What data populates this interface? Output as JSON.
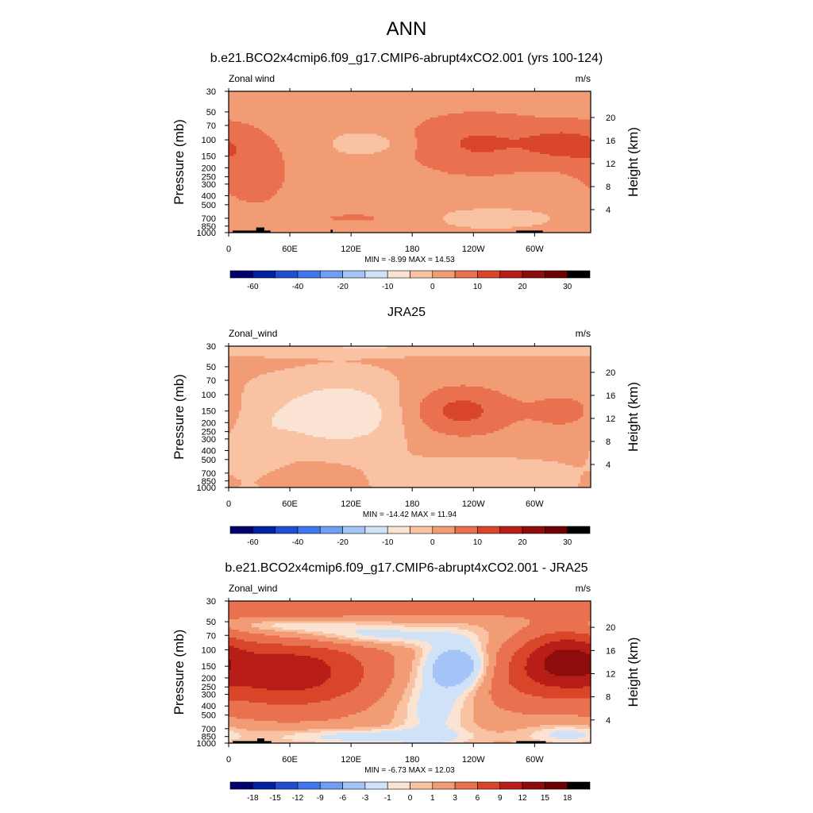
{
  "page_title": "ANN",
  "colors": {
    "full_scale": [
      "#00006e",
      "#0022a0",
      "#1f4fd0",
      "#3f77ee",
      "#6f9ff5",
      "#a4c3f7",
      "#d0e2f8",
      "#fbe3d3",
      "#f8c2a3",
      "#f29c76",
      "#e9714f",
      "#d84528",
      "#b81e17",
      "#8f0c0c",
      "#6e0000"
    ],
    "diff_scale": [
      "#00006e",
      "#0022a0",
      "#1f4fd0",
      "#3f77ee",
      "#6f9ff5",
      "#a4c3f7",
      "#d0e2f8",
      "#fbe3d3",
      "#f8c2a3",
      "#f29c76",
      "#e9714f",
      "#d84528",
      "#b81e17",
      "#8f0c0c",
      "#6e0000"
    ]
  },
  "chart_data": [
    {
      "type": "heatmap",
      "title": "b.e21.BCO2x4cmip6.f09_g17.CMIP6-abrupt4xCO2.001 (yrs 100-124)",
      "variable_label": "Zonal wind",
      "units": "m/s",
      "ylabel": "Pressure (mb)",
      "y2label": "Height (km)",
      "x_ticks": [
        "0",
        "60E",
        "120E",
        "180",
        "120W",
        "60W"
      ],
      "x_tick_values": [
        0,
        60,
        120,
        180,
        240,
        300
      ],
      "xlim": [
        0,
        355
      ],
      "y_ticks": [
        "30",
        "50",
        "70",
        "100",
        "150",
        "200",
        "250",
        "300",
        "400",
        "500",
        "700",
        "850",
        "1000"
      ],
      "y_tick_values": [
        30,
        50,
        70,
        100,
        150,
        200,
        250,
        300,
        400,
        500,
        700,
        850,
        1000
      ],
      "ylim": [
        1000,
        30
      ],
      "y2_ticks": [
        "4",
        "8",
        "12",
        "16",
        "20"
      ],
      "y2_tick_values": [
        4,
        8,
        12,
        16,
        20
      ],
      "stats": "MIN = -8.99  MAX = 14.53",
      "colorbar_labels": [
        "-60",
        "-40",
        "-20",
        "-10",
        "0",
        "10",
        "20",
        "30"
      ],
      "colorbar_label_positions": [
        1,
        3,
        5,
        7,
        9,
        11,
        13,
        15
      ],
      "contour_levels": [
        -70,
        -60,
        -50,
        -40,
        -30,
        -20,
        -15,
        -10,
        -5,
        0,
        5,
        10,
        15,
        20,
        25,
        30,
        35
      ],
      "field": {
        "base": 1.5,
        "features": [
          {
            "lon": 245,
            "p": 110,
            "amp": 9,
            "wlon": 55,
            "wlogp": 0.25
          },
          {
            "lon": 330,
            "p": 110,
            "amp": 6.5,
            "wlon": 28,
            "wlogp": 0.16
          },
          {
            "lon": 140,
            "p": 110,
            "amp": -5,
            "wlon": 28,
            "wlogp": 0.1
          },
          {
            "lon": 15,
            "p": 150,
            "amp": 4.5,
            "wlon": 30,
            "wlogp": 0.3
          },
          {
            "lon": 130,
            "p": 700,
            "amp": 4,
            "wlon": 55,
            "wlogp": 0.08
          },
          {
            "lon": 30,
            "p": 300,
            "amp": 3,
            "wlon": 30,
            "wlogp": 0.3
          },
          {
            "lon": 250,
            "p": 700,
            "amp": -4,
            "wlon": 50,
            "wlogp": 0.08
          },
          {
            "lon": 10,
            "p": 700,
            "amp": -3,
            "wlon": 15,
            "wlogp": 0.06
          }
        ]
      },
      "terrain": [
        {
          "lon0": 4,
          "lon1": 41,
          "p": 950
        },
        {
          "lon0": 27,
          "lon1": 35,
          "p": 880
        },
        {
          "lon0": 100,
          "lon1": 102,
          "p": 930
        },
        {
          "lon0": 282,
          "lon1": 308,
          "p": 950
        }
      ]
    },
    {
      "type": "heatmap",
      "title": "JRA25",
      "variable_label": "Zonal_wind",
      "units": "m/s",
      "ylabel": "Pressure (mb)",
      "y2label": "Height (km)",
      "x_ticks": [
        "0",
        "60E",
        "120E",
        "180",
        "120W",
        "60W"
      ],
      "x_tick_values": [
        0,
        60,
        120,
        180,
        240,
        300
      ],
      "xlim": [
        0,
        355
      ],
      "y_ticks": [
        "30",
        "50",
        "70",
        "100",
        "150",
        "200",
        "250",
        "300",
        "400",
        "500",
        "700",
        "850",
        "1000"
      ],
      "y_tick_values": [
        30,
        50,
        70,
        100,
        150,
        200,
        250,
        300,
        400,
        500,
        700,
        850,
        1000
      ],
      "ylim": [
        1000,
        30
      ],
      "y2_ticks": [
        "4",
        "8",
        "12",
        "16",
        "20"
      ],
      "y2_tick_values": [
        4,
        8,
        12,
        16,
        20
      ],
      "stats": "MIN = -14.42  MAX = 11.94",
      "colorbar_labels": [
        "-60",
        "-40",
        "-20",
        "-10",
        "0",
        "10",
        "20",
        "30"
      ],
      "colorbar_label_positions": [
        1,
        3,
        5,
        7,
        9,
        11,
        13,
        15
      ],
      "contour_levels": [
        -70,
        -60,
        -50,
        -40,
        -30,
        -20,
        -15,
        -10,
        -5,
        0,
        5,
        10,
        15,
        20,
        25,
        30,
        35
      ],
      "field": {
        "base": 1,
        "features": [
          {
            "lon": 225,
            "p": 150,
            "amp": 11,
            "wlon": 40,
            "wlogp": 0.2
          },
          {
            "lon": 330,
            "p": 150,
            "amp": 6,
            "wlon": 25,
            "wlogp": 0.15
          },
          {
            "lon": 110,
            "p": 160,
            "amp": -11,
            "wlon": 48,
            "wlogp": 0.25
          },
          {
            "lon": 30,
            "p": 400,
            "amp": -4,
            "wlon": 20,
            "wlogp": 0.35
          },
          {
            "lon": 240,
            "p": 800,
            "amp": -4,
            "wlon": 70,
            "wlogp": 0.15
          },
          {
            "lon": 60,
            "p": 800,
            "amp": 3,
            "wlon": 40,
            "wlogp": 0.1
          },
          {
            "lon": 180,
            "p": 30,
            "amp": -6,
            "wlon": 400,
            "wlogp": 0.06
          }
        ]
      },
      "terrain": []
    },
    {
      "type": "heatmap",
      "title": "b.e21.BCO2x4cmip6.f09_g17.CMIP6-abrupt4xCO2.001 - JRA25",
      "variable_label": "Zonal_wind",
      "units": "m/s",
      "ylabel": "Pressure (mb)",
      "y2label": "Height (km)",
      "x_ticks": [
        "0",
        "60E",
        "120E",
        "180",
        "120W",
        "60W"
      ],
      "x_tick_values": [
        0,
        60,
        120,
        180,
        240,
        300
      ],
      "xlim": [
        0,
        355
      ],
      "y_ticks": [
        "30",
        "50",
        "70",
        "100",
        "150",
        "200",
        "250",
        "300",
        "400",
        "500",
        "700",
        "850",
        "1000"
      ],
      "y_tick_values": [
        30,
        50,
        70,
        100,
        150,
        200,
        250,
        300,
        400,
        500,
        700,
        850,
        1000
      ],
      "ylim": [
        1000,
        30
      ],
      "y2_ticks": [
        "4",
        "8",
        "12",
        "16",
        "20"
      ],
      "y2_tick_values": [
        4,
        8,
        12,
        16,
        20
      ],
      "stats": "MIN = -6.73  MAX = 12.03",
      "colorbar_labels": [
        "-18",
        "-15",
        "-12",
        "-9",
        "-6",
        "-3",
        "-1",
        "0",
        "1",
        "3",
        "6",
        "9",
        "12",
        "15",
        "18"
      ],
      "colorbar_label_positions": [
        1,
        2,
        3,
        4,
        5,
        6,
        7,
        8,
        9,
        10,
        11,
        12,
        13,
        14,
        15
      ],
      "contour_levels": [
        -21,
        -18,
        -15,
        -12,
        -9,
        -6,
        -3,
        -1,
        0,
        1,
        3,
        6,
        9,
        12,
        15,
        18,
        21
      ],
      "field": {
        "base": 1.5,
        "features": [
          {
            "lon": 60,
            "p": 175,
            "amp": 9.5,
            "wlon": 60,
            "wlogp": 0.28
          },
          {
            "lon": 330,
            "p": 120,
            "amp": 8,
            "wlon": 30,
            "wlogp": 0.22
          },
          {
            "lon": 290,
            "p": 200,
            "amp": 4,
            "wlon": 40,
            "wlogp": 0.25
          },
          {
            "lon": 225,
            "p": 150,
            "amp": -7.5,
            "wlon": 22,
            "wlogp": 0.18
          },
          {
            "lon": 200,
            "p": 400,
            "amp": -3.5,
            "wlon": 25,
            "wlogp": 0.3
          },
          {
            "lon": 130,
            "p": 70,
            "amp": -4,
            "wlon": 70,
            "wlogp": 0.08
          },
          {
            "lon": 60,
            "p": 55,
            "amp": -3,
            "wlon": 50,
            "wlogp": 0.05
          },
          {
            "lon": 180,
            "p": 33,
            "amp": 4,
            "wlon": 400,
            "wlogp": 0.08
          },
          {
            "lon": 130,
            "p": 850,
            "amp": -3.5,
            "wlon": 70,
            "wlogp": 0.06
          },
          {
            "lon": 330,
            "p": 800,
            "amp": -3,
            "wlon": 30,
            "wlogp": 0.08
          }
        ]
      },
      "terrain": [
        {
          "lon0": 4,
          "lon1": 42,
          "p": 950
        },
        {
          "lon0": 28,
          "lon1": 35,
          "p": 890
        },
        {
          "lon0": 282,
          "lon1": 311,
          "p": 950
        }
      ]
    }
  ]
}
